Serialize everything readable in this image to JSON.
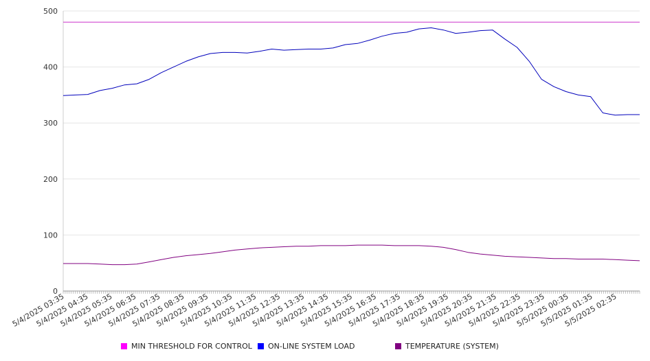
{
  "chart_data": {
    "type": "line",
    "title": "",
    "xlabel": "",
    "ylabel": "",
    "ylim": [
      0,
      500
    ],
    "yticks": [
      0,
      100,
      200,
      300,
      400,
      500
    ],
    "grid": true,
    "legend_position": "bottom",
    "x_tick_labels": [
      "5/4/2025 03:35",
      "5/4/2025 04:35",
      "5/4/2025 05:35",
      "5/4/2025 06:35",
      "5/4/2025 07:35",
      "5/4/2025 08:35",
      "5/4/2025 09:35",
      "5/4/2025 10:35",
      "5/4/2025 11:35",
      "5/4/2025 12:35",
      "5/4/2025 13:35",
      "5/4/2025 14:35",
      "5/4/2025 15:35",
      "5/4/2025 16:35",
      "5/4/2025 17:35",
      "5/4/2025 18:35",
      "5/4/2025 19:35",
      "5/4/2025 20:35",
      "5/4/2025 21:35",
      "5/4/2025 22:35",
      "5/4/2025 23:35",
      "5/5/2025 00:35",
      "5/5/2025 01:35",
      "5/5/2025 02:35"
    ],
    "x": [
      "5/4/2025 03:35",
      "5/4/2025 04:05",
      "5/4/2025 04:35",
      "5/4/2025 05:05",
      "5/4/2025 05:35",
      "5/4/2025 06:05",
      "5/4/2025 06:35",
      "5/4/2025 07:05",
      "5/4/2025 07:35",
      "5/4/2025 08:05",
      "5/4/2025 08:35",
      "5/4/2025 09:05",
      "5/4/2025 09:35",
      "5/4/2025 10:05",
      "5/4/2025 10:35",
      "5/4/2025 11:05",
      "5/4/2025 11:35",
      "5/4/2025 12:05",
      "5/4/2025 12:35",
      "5/4/2025 13:05",
      "5/4/2025 13:35",
      "5/4/2025 14:05",
      "5/4/2025 14:35",
      "5/4/2025 15:05",
      "5/4/2025 15:35",
      "5/4/2025 16:05",
      "5/4/2025 16:35",
      "5/4/2025 17:05",
      "5/4/2025 17:35",
      "5/4/2025 18:05",
      "5/4/2025 18:35",
      "5/4/2025 19:05",
      "5/4/2025 19:35",
      "5/4/2025 20:05",
      "5/4/2025 20:35",
      "5/4/2025 21:05",
      "5/4/2025 21:35",
      "5/4/2025 22:05",
      "5/4/2025 22:35",
      "5/4/2025 23:05",
      "5/4/2025 23:35",
      "5/5/2025 00:05",
      "5/5/2025 00:35",
      "5/5/2025 01:05",
      "5/5/2025 01:35",
      "5/5/2025 02:05",
      "5/5/2025 02:35",
      "5/5/2025 03:05"
    ],
    "series": [
      {
        "name": "MIN THRESHOLD FOR CONTROL",
        "color": "#cc33cc",
        "values": [
          480,
          480,
          480,
          480,
          480,
          480,
          480,
          480,
          480,
          480,
          480,
          480,
          480,
          480,
          480,
          480,
          480,
          480,
          480,
          480,
          480,
          480,
          480,
          480,
          480,
          480,
          480,
          480,
          480,
          480,
          480,
          480,
          480,
          480,
          480,
          480,
          480,
          480,
          480,
          480,
          480,
          480,
          480,
          480,
          480,
          480,
          480,
          480
        ]
      },
      {
        "name": "ON-LINE SYSTEM LOAD",
        "color": "#0000bb",
        "values": [
          349,
          350,
          351,
          358,
          362,
          368,
          370,
          378,
          390,
          400,
          410,
          418,
          424,
          426,
          426,
          425,
          428,
          432,
          430,
          431,
          432,
          432,
          434,
          440,
          442,
          448,
          455,
          460,
          462,
          468,
          470,
          466,
          460,
          462,
          465,
          466,
          450,
          435,
          410,
          378,
          365,
          356,
          350,
          347,
          318,
          314,
          315,
          315
        ]
      },
      {
        "name": "TEMPERATURE (SYSTEM)",
        "color": "#800080",
        "values": [
          49,
          49,
          49,
          48,
          47,
          47,
          48,
          52,
          56,
          60,
          63,
          65,
          67,
          70,
          73,
          75,
          77,
          78,
          79,
          80,
          80,
          81,
          81,
          81,
          82,
          82,
          82,
          81,
          81,
          81,
          80,
          78,
          74,
          69,
          66,
          64,
          62,
          61,
          60,
          59,
          58,
          58,
          57,
          57,
          57,
          56,
          55,
          54
        ]
      }
    ]
  }
}
